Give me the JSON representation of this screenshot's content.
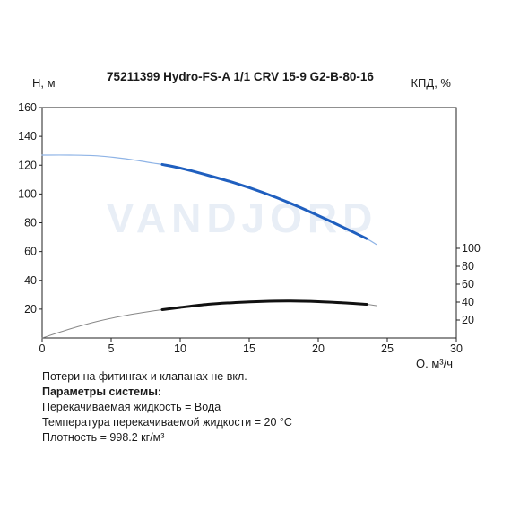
{
  "chart_data": {
    "type": "line",
    "title": "75211399 Hydro-FS-A 1/1 CRV 15-9 G2-B-80-16",
    "xlabel": "Q, м³/ч",
    "ylabel": "Н, м",
    "y2label": "КПД, %",
    "watermark": "VANDJORD",
    "xlim": [
      0,
      30
    ],
    "ylim": [
      0,
      160
    ],
    "y2lim": [
      0,
      120
    ],
    "x_ticks": [
      0,
      5,
      10,
      15,
      20,
      25,
      30
    ],
    "y_ticks": [
      20,
      40,
      60,
      80,
      100,
      120,
      140,
      160
    ],
    "y2_ticks": [
      20,
      40,
      60,
      80,
      100
    ],
    "colors": {
      "head_thick": "#1f5fbf",
      "head_thin": "#8fb4e6",
      "eff_thick": "#111111",
      "eff_thin": "#888888",
      "axis": "#222222",
      "watermark": "#e8eef6"
    },
    "series": [
      {
        "id": "head_full",
        "axis": "left",
        "style": "thin-blue",
        "x": [
          0,
          2,
          4,
          6,
          8,
          8.7,
          10,
          12,
          14,
          16,
          18,
          20,
          22,
          23.5,
          24.2
        ],
        "y": [
          127,
          127,
          126.5,
          124.5,
          121.5,
          120.5,
          118,
          113,
          107.5,
          101,
          93.5,
          85,
          76,
          69,
          65
        ]
      },
      {
        "id": "head_operating",
        "axis": "left",
        "style": "thick-blue",
        "x": [
          8.7,
          10,
          12,
          14,
          16,
          18,
          20,
          22,
          23.5
        ],
        "y": [
          120.5,
          118,
          113,
          107.5,
          101,
          93.5,
          85,
          76,
          69
        ]
      },
      {
        "id": "eff_full",
        "axis": "right",
        "style": "thin-grey",
        "x": [
          0,
          2,
          4,
          6,
          8,
          8.7,
          10,
          12,
          14,
          16,
          18,
          20,
          22,
          23.5,
          24.2
        ],
        "y": [
          0,
          10,
          18.5,
          25,
          30,
          31.5,
          34,
          37.5,
          39.5,
          40.8,
          41.2,
          40.5,
          39,
          37.5,
          36
        ]
      },
      {
        "id": "eff_operating",
        "axis": "right",
        "style": "thick-black",
        "x": [
          8.7,
          10,
          12,
          14,
          16,
          18,
          20,
          22,
          23.5
        ],
        "y": [
          31.5,
          34,
          37.5,
          39.5,
          40.8,
          41.2,
          40.5,
          39,
          37.5
        ]
      }
    ]
  },
  "notes": {
    "line1": "Потери на фитингах и клапанах не вкл.",
    "line2": "Параметры системы:",
    "line3": "Перекачиваемая жидкость = Вода",
    "line4": "Температура перекачиваемой жидкости = 20 °C",
    "line5": "Плотность = 998.2 кг/м³"
  }
}
